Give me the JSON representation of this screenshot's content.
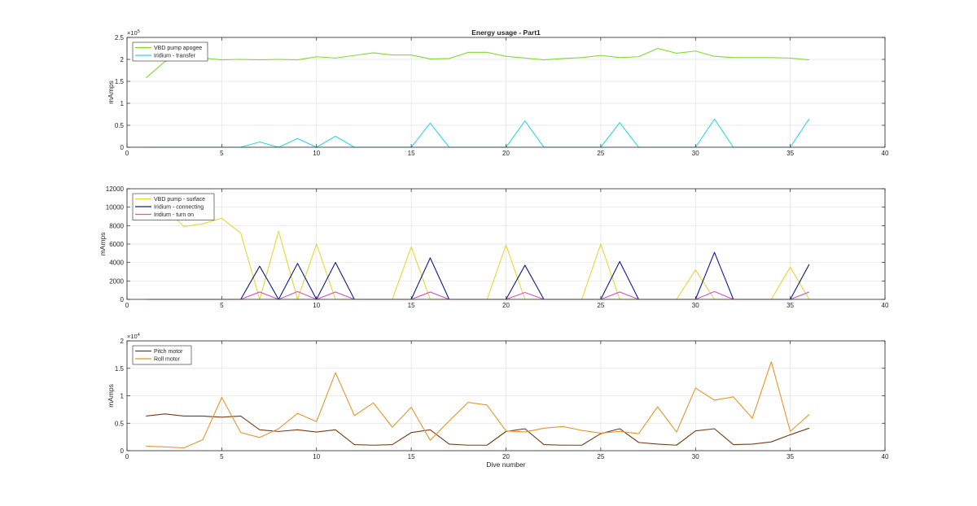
{
  "figure": {
    "title": "Energy usage - Part1",
    "xlabel": "Dive number"
  },
  "chart_data": [
    {
      "type": "line",
      "title": "Energy usage - Part1",
      "xlabel": "",
      "ylabel": "mAmps",
      "xlim": [
        0,
        40
      ],
      "ylim": [
        0,
        2.5
      ],
      "y_exponent_label": {
        "base": "×10",
        "exp": "5"
      },
      "xticks": [
        "0",
        "5",
        "10",
        "15",
        "20",
        "25",
        "30",
        "35",
        "40"
      ],
      "yticks": [
        "0",
        "0.5",
        "1",
        "1.5",
        "2",
        "2.5"
      ],
      "grid": true,
      "legend_position": "top-left",
      "series": [
        {
          "name": "VBD pump apogee",
          "color": "#7fdb2e",
          "x": [
            1,
            2,
            3,
            4,
            5,
            6,
            7,
            8,
            9,
            10,
            11,
            12,
            13,
            14,
            15,
            16,
            17,
            18,
            19,
            20,
            21,
            22,
            23,
            24,
            25,
            26,
            27,
            28,
            29,
            30,
            31,
            32,
            33,
            34,
            35,
            36
          ],
          "y": [
            1.58,
            1.95,
            2.08,
            2.03,
            1.99,
            2.0,
            1.99,
            2.0,
            1.99,
            2.06,
            2.03,
            2.09,
            2.15,
            2.1,
            2.1,
            2.01,
            2.02,
            2.16,
            2.16,
            2.07,
            2.03,
            1.99,
            2.02,
            2.04,
            2.09,
            2.04,
            2.06,
            2.25,
            2.14,
            2.19,
            2.07,
            2.04,
            2.04,
            2.04,
            2.03,
            1.99
          ]
        },
        {
          "name": "Iridium - transfer",
          "color": "#2ed8e6",
          "x": [
            1,
            2,
            3,
            4,
            5,
            6,
            7,
            8,
            9,
            10,
            11,
            12,
            13,
            14,
            15,
            16,
            17,
            18,
            19,
            20,
            21,
            22,
            23,
            24,
            25,
            26,
            27,
            28,
            29,
            30,
            31,
            32,
            33,
            34,
            35,
            36
          ],
          "y": [
            0,
            0,
            0,
            0,
            0,
            0,
            0.12,
            0,
            0.2,
            0,
            0.25,
            0,
            0,
            0,
            0,
            0.55,
            0,
            0,
            0,
            0,
            0.6,
            0,
            0,
            0,
            0,
            0.56,
            0,
            0,
            0,
            0,
            0.64,
            0,
            0,
            0,
            0,
            0.65
          ]
        }
      ]
    },
    {
      "type": "line",
      "title": "",
      "xlabel": "",
      "ylabel": "mAmps",
      "xlim": [
        0,
        40
      ],
      "ylim": [
        0,
        12000
      ],
      "xticks": [
        "0",
        "5",
        "10",
        "15",
        "20",
        "25",
        "30",
        "35",
        "40"
      ],
      "yticks": [
        "0",
        "2000",
        "4000",
        "6000",
        "8000",
        "10000",
        "12000"
      ],
      "grid": true,
      "legend_position": "top-left",
      "series": [
        {
          "name": "VBD pump - surface",
          "color": "#e8d52e",
          "x": [
            1,
            2,
            3,
            4,
            5,
            6,
            7,
            8,
            9,
            10,
            11,
            12,
            13,
            14,
            15,
            16,
            17,
            18,
            19,
            20,
            21,
            22,
            23,
            24,
            25,
            26,
            27,
            28,
            29,
            30,
            31,
            32,
            33,
            34,
            35,
            36
          ],
          "y": [
            10100,
            9900,
            7900,
            8200,
            8800,
            7200,
            0,
            7400,
            0,
            6000,
            0,
            0,
            0,
            0,
            5700,
            0,
            0,
            0,
            0,
            5900,
            0,
            0,
            0,
            0,
            6000,
            0,
            0,
            0,
            0,
            3200,
            0,
            0,
            0,
            0,
            3500,
            0
          ]
        },
        {
          "name": "Iridium - connecting",
          "color": "#0d1a8f",
          "x": [
            1,
            2,
            3,
            4,
            5,
            6,
            7,
            8,
            9,
            10,
            11,
            12,
            13,
            14,
            15,
            16,
            17,
            18,
            19,
            20,
            21,
            22,
            23,
            24,
            25,
            26,
            27,
            28,
            29,
            30,
            31,
            32,
            33,
            34,
            35,
            36
          ],
          "y": [
            0,
            0,
            0,
            0,
            0,
            0,
            3600,
            0,
            3900,
            0,
            4000,
            0,
            0,
            0,
            0,
            4500,
            0,
            0,
            0,
            0,
            3700,
            0,
            0,
            0,
            0,
            4100,
            0,
            0,
            0,
            0,
            5100,
            0,
            0,
            0,
            0,
            3800
          ]
        },
        {
          "name": "Iridium - turn on",
          "color": "#d94fd1",
          "x": [
            1,
            2,
            3,
            4,
            5,
            6,
            7,
            8,
            9,
            10,
            11,
            12,
            13,
            14,
            15,
            16,
            17,
            18,
            19,
            20,
            21,
            22,
            23,
            24,
            25,
            26,
            27,
            28,
            29,
            30,
            31,
            32,
            33,
            34,
            35,
            36
          ],
          "y": [
            0,
            0,
            0,
            0,
            0,
            0,
            800,
            0,
            850,
            0,
            800,
            0,
            0,
            0,
            0,
            800,
            0,
            0,
            0,
            0,
            750,
            0,
            0,
            0,
            0,
            800,
            0,
            0,
            0,
            0,
            850,
            0,
            0,
            0,
            0,
            800
          ]
        }
      ]
    },
    {
      "type": "line",
      "title": "",
      "xlabel": "Dive number",
      "ylabel": "mAmps",
      "xlim": [
        0,
        40
      ],
      "ylim": [
        0,
        2
      ],
      "y_exponent_label": {
        "base": "×10",
        "exp": "4"
      },
      "xticks": [
        "0",
        "5",
        "10",
        "15",
        "20",
        "25",
        "30",
        "35",
        "40"
      ],
      "yticks": [
        "0",
        "0.5",
        "1",
        "1.5",
        "2"
      ],
      "grid": true,
      "legend_position": "top-left",
      "series": [
        {
          "name": "Pitch motor",
          "color": "#7a3b14",
          "x": [
            1,
            2,
            3,
            4,
            5,
            6,
            7,
            8,
            9,
            10,
            11,
            12,
            13,
            14,
            15,
            16,
            17,
            18,
            19,
            20,
            21,
            22,
            23,
            24,
            25,
            26,
            27,
            28,
            29,
            30,
            31,
            32,
            33,
            34,
            35,
            36
          ],
          "y": [
            0.63,
            0.67,
            0.63,
            0.63,
            0.61,
            0.63,
            0.38,
            0.35,
            0.38,
            0.34,
            0.38,
            0.11,
            0.1,
            0.11,
            0.33,
            0.38,
            0.12,
            0.1,
            0.1,
            0.35,
            0.4,
            0.11,
            0.1,
            0.1,
            0.31,
            0.4,
            0.15,
            0.12,
            0.1,
            0.36,
            0.4,
            0.11,
            0.12,
            0.16,
            0.29,
            0.41
          ]
        },
        {
          "name": "Roll motor",
          "color": "#e8952a",
          "x": [
            1,
            2,
            3,
            4,
            5,
            6,
            7,
            8,
            9,
            10,
            11,
            12,
            13,
            14,
            15,
            16,
            17,
            18,
            19,
            20,
            21,
            22,
            23,
            24,
            25,
            26,
            27,
            28,
            29,
            30,
            31,
            32,
            33,
            34,
            35,
            36
          ],
          "y": [
            0.08,
            0.07,
            0.05,
            0.2,
            0.97,
            0.33,
            0.24,
            0.4,
            0.68,
            0.53,
            1.42,
            0.64,
            0.87,
            0.43,
            0.79,
            0.19,
            0.54,
            0.88,
            0.83,
            0.36,
            0.34,
            0.41,
            0.44,
            0.37,
            0.32,
            0.35,
            0.31,
            0.8,
            0.34,
            1.14,
            0.92,
            0.98,
            0.59,
            1.62,
            0.35,
            0.66
          ]
        }
      ]
    }
  ]
}
